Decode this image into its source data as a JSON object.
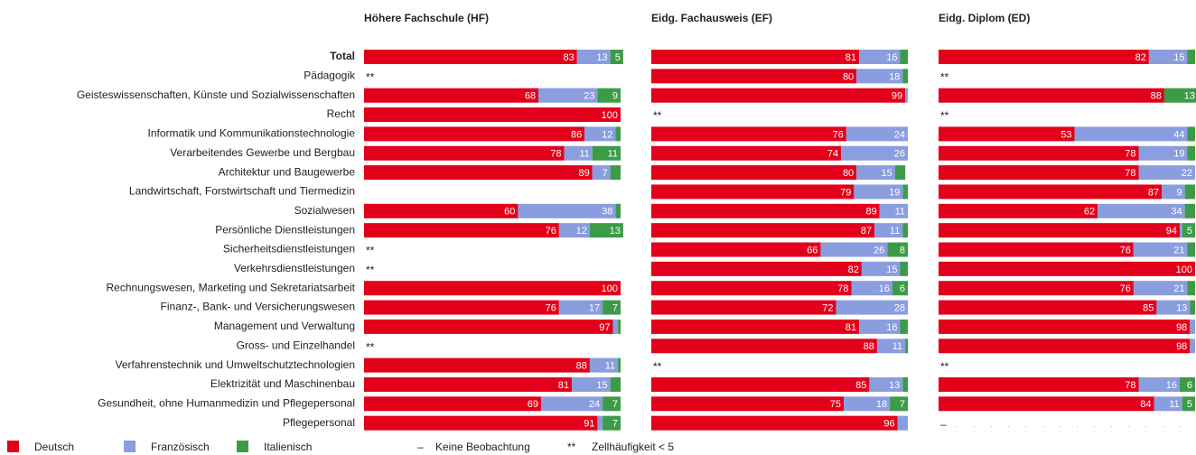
{
  "chart_data": [
    {
      "type": "bar",
      "orientation": "horizontal",
      "stacked": true,
      "title": "Höhere Fachschule (HF)",
      "categories": [
        "Total",
        "Pädagogik",
        "Geisteswissenschaften, Künste und Sozialwissenschaften",
        "Recht",
        "Informatik und Kommunikationstechnologie",
        "Verarbeitendes Gewerbe und Bergbau",
        "Architektur und Baugewerbe",
        "Landwirtschaft, Forstwirtschaft und Tiermedizin",
        "Sozialwesen",
        "Persönliche Dienstleistungen",
        "Sicherheitsdienstleistungen",
        "Verkehrsdienstleistungen",
        "Rechnungswesen, Marketing und Sekretariatsarbeit",
        "Finanz-, Bank- und Versicherungswesen",
        "Management und Verwaltung",
        "Gross- und Einzelhandel",
        "Verfahrenstechnik und Umweltschutztechnologien",
        "Elektrizität und Maschinenbau",
        "Gesundheit, ohne Humanmedizin und Pflegepersonal",
        "Pflegepersonal"
      ],
      "xlim": [
        0,
        100
      ],
      "notes": [
        null,
        "**",
        null,
        null,
        null,
        null,
        null,
        null,
        null,
        null,
        "**",
        "**",
        null,
        null,
        null,
        "**",
        null,
        null,
        null,
        null
      ],
      "series": [
        {
          "name": "Deutsch",
          "color": "#e2001a",
          "values": [
            83,
            null,
            68,
            100,
            86,
            78,
            89,
            null,
            60,
            76,
            null,
            null,
            100,
            76,
            97,
            null,
            88,
            81,
            69,
            91
          ]
        },
        {
          "name": "Französisch",
          "color": "#8a9ddf",
          "values": [
            13,
            null,
            23,
            0,
            12,
            11,
            7,
            null,
            38,
            12,
            null,
            null,
            0,
            17,
            2,
            null,
            11,
            15,
            24,
            2
          ]
        },
        {
          "name": "Italienisch",
          "color": "#3c9b47",
          "values": [
            5,
            null,
            9,
            0,
            2,
            11,
            4,
            null,
            2,
            13,
            null,
            null,
            0,
            7,
            1,
            null,
            1,
            4,
            7,
            7
          ]
        }
      ]
    },
    {
      "type": "bar",
      "orientation": "horizontal",
      "stacked": true,
      "title": "Eidg. Fachausweis (EF)",
      "xlim": [
        0,
        100
      ],
      "notes": [
        null,
        null,
        null,
        "**",
        null,
        null,
        null,
        null,
        null,
        null,
        null,
        null,
        null,
        null,
        null,
        null,
        "**",
        null,
        null,
        null
      ],
      "series": [
        {
          "name": "Deutsch",
          "color": "#e2001a",
          "values": [
            81,
            80,
            99,
            null,
            76,
            74,
            80,
            79,
            89,
            87,
            66,
            82,
            78,
            72,
            81,
            88,
            null,
            85,
            75,
            96
          ]
        },
        {
          "name": "Französisch",
          "color": "#8a9ddf",
          "values": [
            16,
            18,
            1,
            null,
            24,
            26,
            15,
            19,
            11,
            11,
            26,
            15,
            16,
            28,
            16,
            11,
            null,
            13,
            18,
            4
          ]
        },
        {
          "name": "Italienisch",
          "color": "#3c9b47",
          "values": [
            3,
            2,
            0,
            null,
            0,
            0,
            4,
            2,
            0,
            2,
            8,
            3,
            6,
            0,
            3,
            1,
            null,
            2,
            7,
            0
          ]
        }
      ]
    },
    {
      "type": "bar",
      "orientation": "horizontal",
      "stacked": true,
      "title": "Eidg. Diplom (ED)",
      "xlim": [
        0,
        100
      ],
      "notes": [
        null,
        "**",
        null,
        "**",
        null,
        null,
        null,
        null,
        null,
        null,
        null,
        null,
        null,
        null,
        null,
        null,
        "**",
        null,
        null,
        "–"
      ],
      "series": [
        {
          "name": "Deutsch",
          "color": "#e2001a",
          "values": [
            82,
            null,
            88,
            null,
            53,
            78,
            78,
            87,
            62,
            94,
            76,
            100,
            76,
            85,
            98,
            98,
            null,
            78,
            84,
            null
          ]
        },
        {
          "name": "Französisch",
          "color": "#8a9ddf",
          "values": [
            15,
            null,
            0,
            null,
            44,
            19,
            22,
            9,
            34,
            1,
            21,
            0,
            21,
            13,
            2,
            2,
            null,
            16,
            11,
            null
          ]
        },
        {
          "name": "Italienisch",
          "color": "#3c9b47",
          "values": [
            3,
            null,
            13,
            null,
            3,
            3,
            0,
            4,
            4,
            5,
            3,
            0,
            3,
            2,
            0,
            0,
            null,
            6,
            5,
            null
          ]
        }
      ]
    }
  ],
  "legend_notes": [
    {
      "symbol": "–",
      "label": "Keine Beobachtung"
    },
    {
      "symbol": "**",
      "label": "Zellhäufigkeit < 5"
    }
  ]
}
